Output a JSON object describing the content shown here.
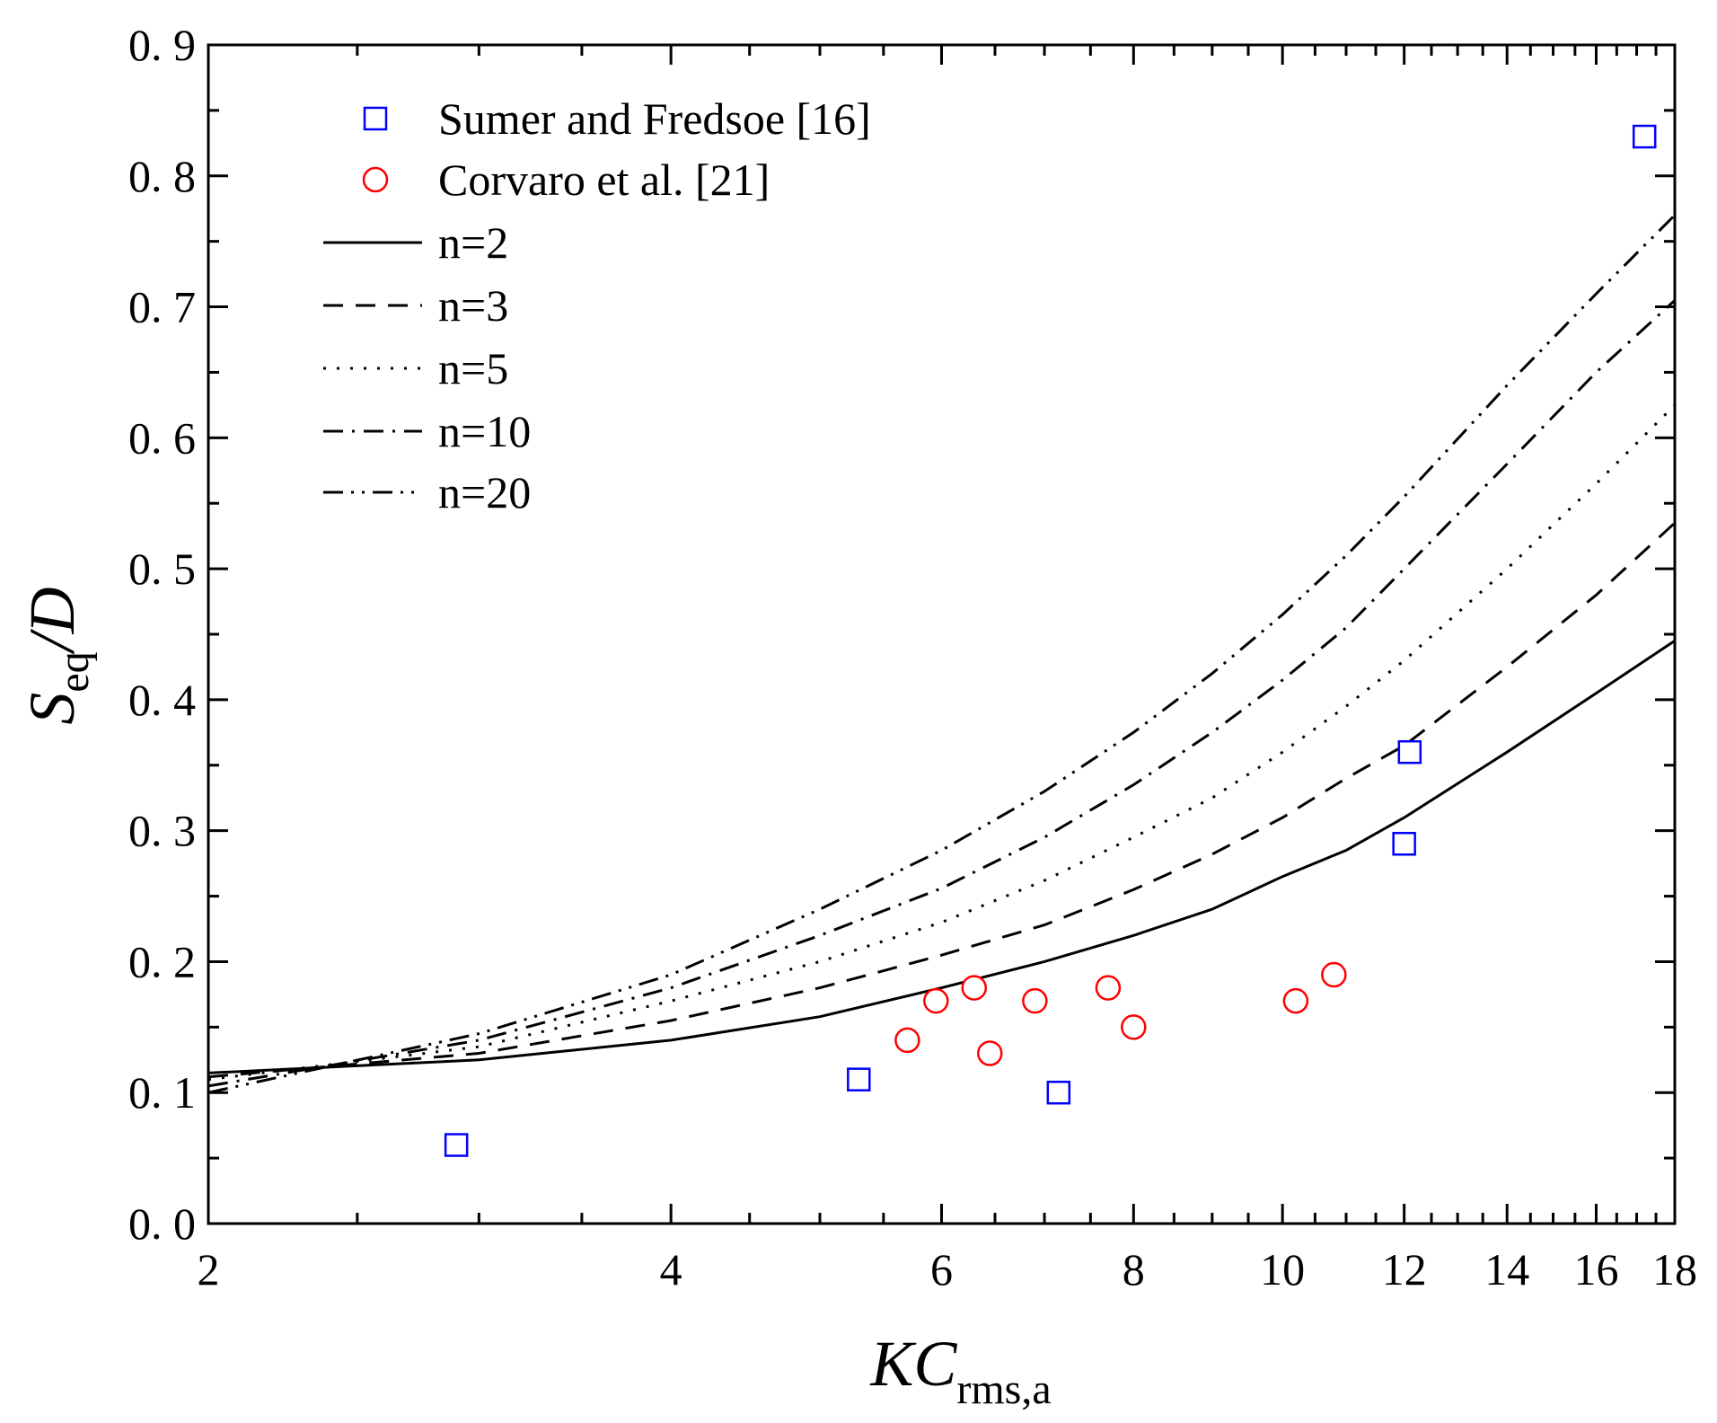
{
  "chart_data": {
    "type": "scatter",
    "title": "",
    "xscale": "log",
    "xlim": [
      2,
      18
    ],
    "ylim": [
      0.0,
      0.9
    ],
    "xticks": [
      {
        "value": 2,
        "label": "2"
      },
      {
        "value": 4,
        "label": "4"
      },
      {
        "value": 6,
        "label": "6"
      },
      {
        "value": 8,
        "label": "8"
      },
      {
        "value": 10,
        "label": "10"
      },
      {
        "value": 12,
        "label": "12"
      },
      {
        "value": 14,
        "label": "14"
      },
      {
        "value": 16,
        "label": "16"
      },
      {
        "value": 18,
        "label": "18"
      }
    ],
    "yticks": [
      {
        "value": 0.0,
        "label": "0. 0"
      },
      {
        "value": 0.1,
        "label": "0. 1"
      },
      {
        "value": 0.2,
        "label": "0. 2"
      },
      {
        "value": 0.3,
        "label": "0. 3"
      },
      {
        "value": 0.4,
        "label": "0. 4"
      },
      {
        "value": 0.5,
        "label": "0. 5"
      },
      {
        "value": 0.6,
        "label": "0. 6"
      },
      {
        "value": 0.7,
        "label": "0. 7"
      },
      {
        "value": 0.8,
        "label": "0. 8"
      },
      {
        "value": 0.9,
        "label": "0. 9"
      }
    ],
    "xlabel": {
      "main": "KC",
      "sub": "rms,a"
    },
    "ylabel": {
      "main": "S",
      "sub": "eq",
      "tail": "/D"
    },
    "grid": false,
    "legend_position": "top-left",
    "series": [
      {
        "name": "Sumer and Fredsoe [16]",
        "kind": "scatter",
        "marker": "square",
        "color": "#0000ff",
        "points": [
          [
            2.9,
            0.06
          ],
          [
            5.3,
            0.11
          ],
          [
            7.15,
            0.1
          ],
          [
            12.0,
            0.29
          ],
          [
            12.1,
            0.36
          ],
          [
            17.2,
            0.83
          ]
        ]
      },
      {
        "name": "Corvaro et al. [21]",
        "kind": "scatter",
        "marker": "circle",
        "color": "#ff0000",
        "points": [
          [
            5.7,
            0.14
          ],
          [
            5.95,
            0.17
          ],
          [
            6.3,
            0.18
          ],
          [
            6.45,
            0.13
          ],
          [
            6.9,
            0.17
          ],
          [
            7.7,
            0.18
          ],
          [
            8.0,
            0.15
          ],
          [
            10.2,
            0.17
          ],
          [
            10.8,
            0.19
          ]
        ]
      },
      {
        "name": "n=2",
        "kind": "line",
        "dash": "solid",
        "color": "#000000",
        "points": [
          [
            2,
            0.115
          ],
          [
            3,
            0.125
          ],
          [
            4,
            0.14
          ],
          [
            5,
            0.158
          ],
          [
            6,
            0.18
          ],
          [
            7,
            0.2
          ],
          [
            8,
            0.22
          ],
          [
            9,
            0.24
          ],
          [
            10,
            0.265
          ],
          [
            11,
            0.285
          ],
          [
            12,
            0.31
          ],
          [
            14,
            0.36
          ],
          [
            16,
            0.405
          ],
          [
            18,
            0.445
          ]
        ]
      },
      {
        "name": "n=3",
        "kind": "line",
        "dash": "dashed",
        "color": "#000000",
        "points": [
          [
            2,
            0.112
          ],
          [
            3,
            0.13
          ],
          [
            4,
            0.155
          ],
          [
            5,
            0.18
          ],
          [
            6,
            0.205
          ],
          [
            7,
            0.228
          ],
          [
            8,
            0.255
          ],
          [
            9,
            0.282
          ],
          [
            10,
            0.31
          ],
          [
            11,
            0.34
          ],
          [
            12,
            0.365
          ],
          [
            14,
            0.425
          ],
          [
            16,
            0.48
          ],
          [
            18,
            0.535
          ]
        ]
      },
      {
        "name": "n=5",
        "kind": "line",
        "dash": "dotted",
        "color": "#000000",
        "points": [
          [
            2,
            0.11
          ],
          [
            3,
            0.135
          ],
          [
            4,
            0.17
          ],
          [
            5,
            0.2
          ],
          [
            6,
            0.23
          ],
          [
            7,
            0.262
          ],
          [
            8,
            0.295
          ],
          [
            9,
            0.325
          ],
          [
            10,
            0.36
          ],
          [
            11,
            0.395
          ],
          [
            12,
            0.43
          ],
          [
            14,
            0.5
          ],
          [
            16,
            0.565
          ],
          [
            18,
            0.625
          ]
        ]
      },
      {
        "name": "n=10",
        "kind": "line",
        "dash": "dashdot",
        "color": "#000000",
        "points": [
          [
            2,
            0.105
          ],
          [
            3,
            0.14
          ],
          [
            4,
            0.18
          ],
          [
            5,
            0.22
          ],
          [
            6,
            0.256
          ],
          [
            7,
            0.295
          ],
          [
            8,
            0.335
          ],
          [
            9,
            0.375
          ],
          [
            10,
            0.415
          ],
          [
            11,
            0.455
          ],
          [
            12,
            0.5
          ],
          [
            14,
            0.58
          ],
          [
            16,
            0.65
          ],
          [
            18,
            0.705
          ]
        ]
      },
      {
        "name": "n=20",
        "kind": "line",
        "dash": "dashdotdot",
        "color": "#000000",
        "points": [
          [
            2,
            0.1
          ],
          [
            3,
            0.145
          ],
          [
            4,
            0.19
          ],
          [
            5,
            0.24
          ],
          [
            6,
            0.285
          ],
          [
            7,
            0.33
          ],
          [
            8,
            0.375
          ],
          [
            9,
            0.42
          ],
          [
            10,
            0.465
          ],
          [
            11,
            0.51
          ],
          [
            12,
            0.555
          ],
          [
            14,
            0.64
          ],
          [
            16,
            0.71
          ],
          [
            18,
            0.77
          ]
        ]
      }
    ]
  }
}
